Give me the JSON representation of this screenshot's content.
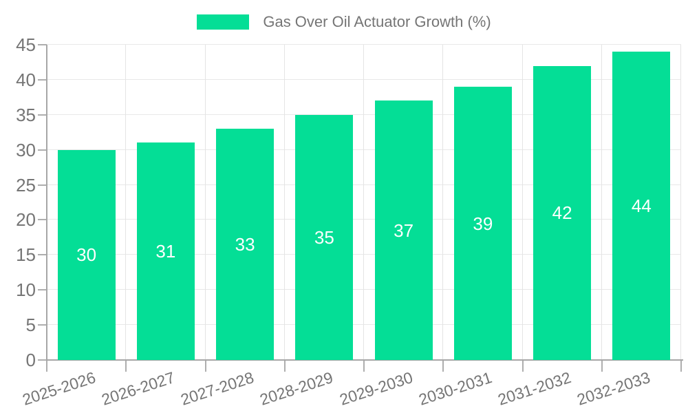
{
  "legend": {
    "series_label": "Gas Over Oil Actuator Growth (%)"
  },
  "chart_data": {
    "type": "bar",
    "title": "Gas Over Oil Actuator Growth (%)",
    "categories": [
      "2025-2026",
      "2026-2027",
      "2027-2028",
      "2028-2029",
      "2029-2030",
      "2030-2031",
      "2031-2032",
      "2032-2033"
    ],
    "values": [
      30,
      31,
      33,
      35,
      37,
      39,
      42,
      44
    ],
    "bar_labels": [
      "30",
      "31",
      "33",
      "35",
      "37",
      "39",
      "42",
      "44"
    ],
    "xlabel": "",
    "ylabel": "",
    "ylim": [
      0,
      45
    ],
    "ytick_step": 5,
    "yticks": [
      0,
      5,
      10,
      15,
      20,
      25,
      30,
      35,
      40,
      45
    ],
    "grid": true,
    "legend_position": "top-center",
    "x_label_rotation_deg": -18,
    "colors": {
      "bar": "#04de96",
      "bar_label": "#ffffff",
      "text": "#757575",
      "grid_h": "#e8e8e8",
      "grid_v": "#e4e4e4",
      "axis": "#a6a6a6",
      "tick": "#aeaeae",
      "background": "#ffffff"
    }
  }
}
